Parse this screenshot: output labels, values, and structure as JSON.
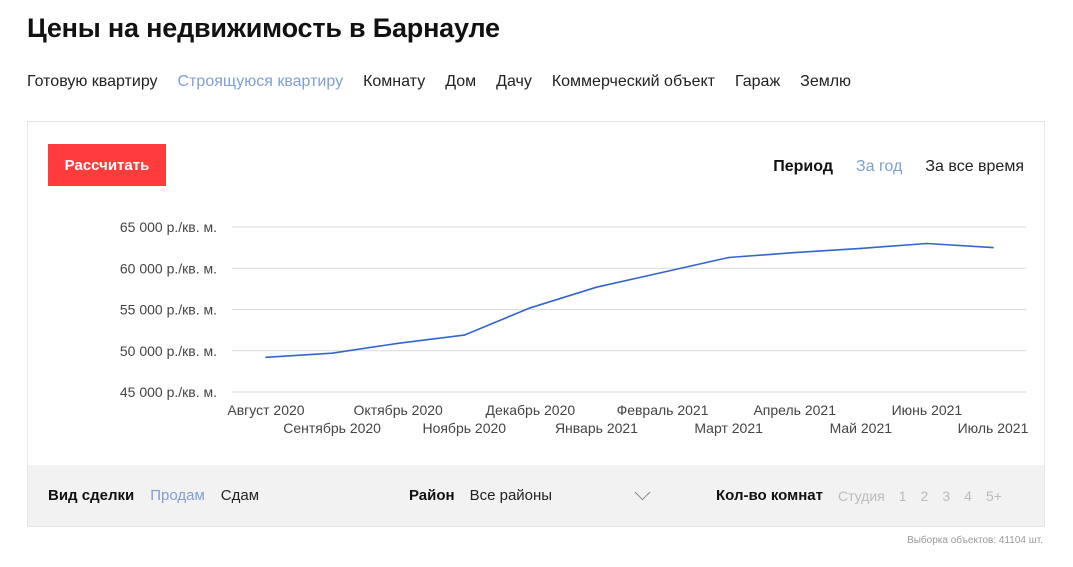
{
  "page": {
    "title": "Цены на недвижимость в Барнауле"
  },
  "category_tabs": [
    {
      "label": "Готовую квартиру",
      "active": false
    },
    {
      "label": "Строящуюся квартиру",
      "active": true
    },
    {
      "label": "Комнату",
      "active": false
    },
    {
      "label": "Дом",
      "active": false
    },
    {
      "label": "Дачу",
      "active": false
    },
    {
      "label": "Коммерческий объект",
      "active": false
    },
    {
      "label": "Гараж",
      "active": false
    },
    {
      "label": "Землю",
      "active": false
    }
  ],
  "calc_button": {
    "label": "Рассчитать",
    "color": "#ff3c3c"
  },
  "period": {
    "label": "Период",
    "options": [
      {
        "label": "За год",
        "active": true
      },
      {
        "label": "За все время",
        "active": false
      }
    ]
  },
  "chart_data": {
    "type": "line",
    "x": [
      "Август 2020",
      "Сентябрь 2020",
      "Октябрь 2020",
      "Ноябрь 2020",
      "Декабрь 2020",
      "Январь 2021",
      "Февраль 2021",
      "Март 2021",
      "Апрель 2021",
      "Май 2021",
      "Июнь 2021",
      "Июль 2021"
    ],
    "series": [
      {
        "values": [
          49200,
          49700,
          50900,
          51900,
          55200,
          57700,
          59500,
          61300,
          61900,
          62400,
          63000,
          62500
        ],
        "color": "#3366cc"
      }
    ],
    "y_ticks": [
      45000,
      50000,
      55000,
      60000,
      65000
    ],
    "y_tick_labels": [
      "45 000 р./кв. м.",
      "50 000 р./кв. м.",
      "55 000 р./кв. м.",
      "60 000 р./кв. м.",
      "65 000 р./кв. м."
    ],
    "ylim": [
      45000,
      65000
    ],
    "grid": true,
    "title": "",
    "xlabel": "",
    "ylabel": ""
  },
  "filters": {
    "deal": {
      "label": "Вид сделки",
      "options": [
        {
          "label": "Продам",
          "active": true
        },
        {
          "label": "Сдам",
          "active": false
        }
      ]
    },
    "district": {
      "label": "Район",
      "value": "Все районы",
      "icon": "chevron-down-icon"
    },
    "rooms": {
      "label": "Кол-во комнат",
      "options": [
        "Студия",
        "1",
        "2",
        "3",
        "4",
        "5+"
      ]
    }
  },
  "sample_count": "Выборка объектов: 41104 шт.",
  "colors": {
    "accent": "#7f9fd6",
    "button": "#ff3c3c",
    "line": "#3366cc",
    "filter_bg": "#f2f2f2"
  }
}
